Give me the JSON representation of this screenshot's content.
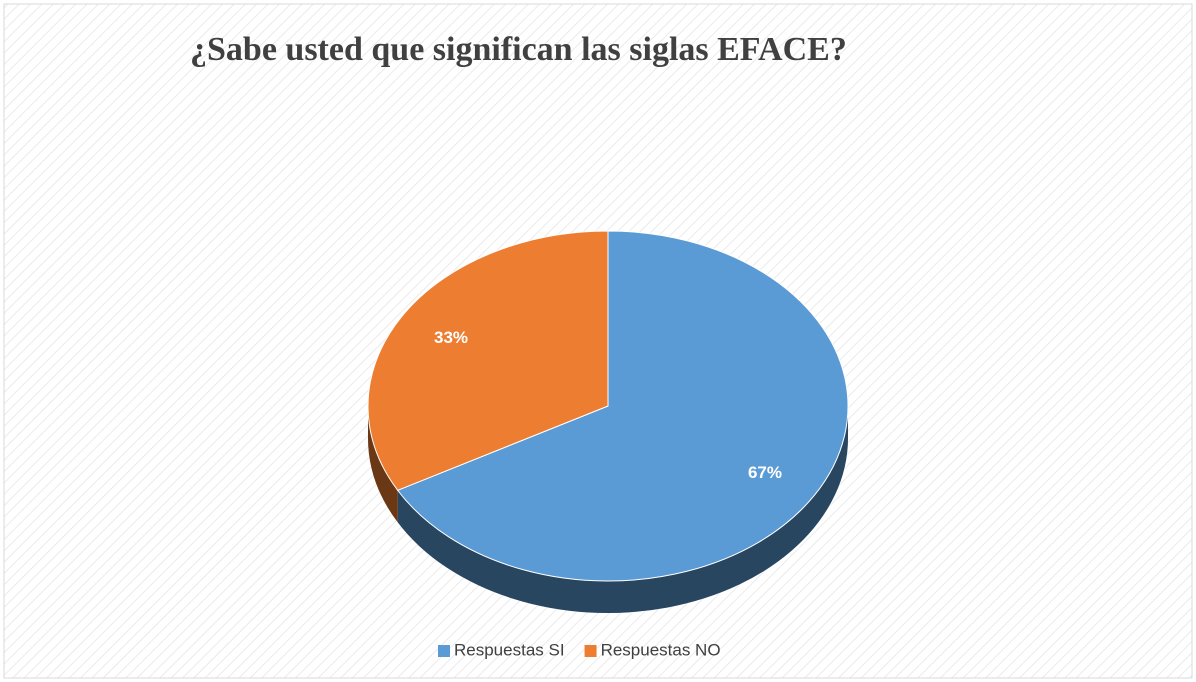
{
  "chart_data": {
    "type": "pie",
    "title": "¿Sabe usted que significan las siglas EFACE?",
    "categories": [
      "Respuestas SI",
      "Respuestas NO"
    ],
    "values": [
      67,
      33
    ],
    "value_labels": [
      "67%",
      "33%"
    ],
    "colors": [
      "#5b9bd5",
      "#ed7d31"
    ],
    "legend": "bottom"
  }
}
